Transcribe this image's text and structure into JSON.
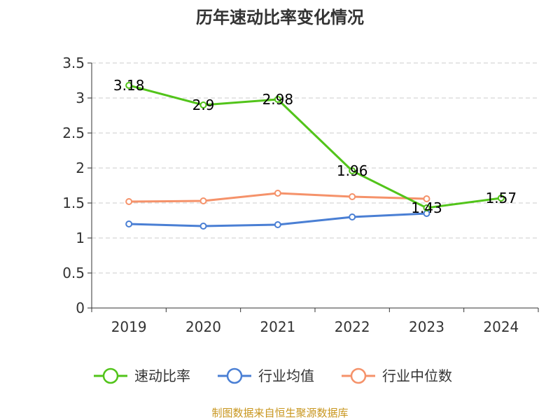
{
  "chart_data": {
    "type": "line",
    "title": "历年速动比率变化情况",
    "categories": [
      "2019",
      "2020",
      "2021",
      "2022",
      "2023",
      "2024"
    ],
    "ylim": [
      0,
      3.5
    ],
    "yticks": [
      "0",
      "0.5",
      "1",
      "1.5",
      "2",
      "2.5",
      "3",
      "3.5"
    ],
    "grid": true,
    "legend_position": "bottom",
    "series": [
      {
        "name": "速动比率",
        "color": "#52c41a",
        "values": [
          3.18,
          2.9,
          2.98,
          1.96,
          1.43,
          1.57
        ],
        "labels": [
          "3.18",
          "2.9",
          "2.98",
          "1.96",
          "1.43",
          "1.57"
        ]
      },
      {
        "name": "行业均值",
        "color": "#4a7fd4",
        "values": [
          1.2,
          1.17,
          1.19,
          1.3,
          1.35,
          null
        ]
      },
      {
        "name": "行业中位数",
        "color": "#f5926a",
        "values": [
          1.52,
          1.53,
          1.64,
          1.59,
          1.56,
          null
        ]
      }
    ]
  },
  "source": {
    "text": "制图数据来自恒生聚源数据库",
    "color": "#c8961e"
  }
}
